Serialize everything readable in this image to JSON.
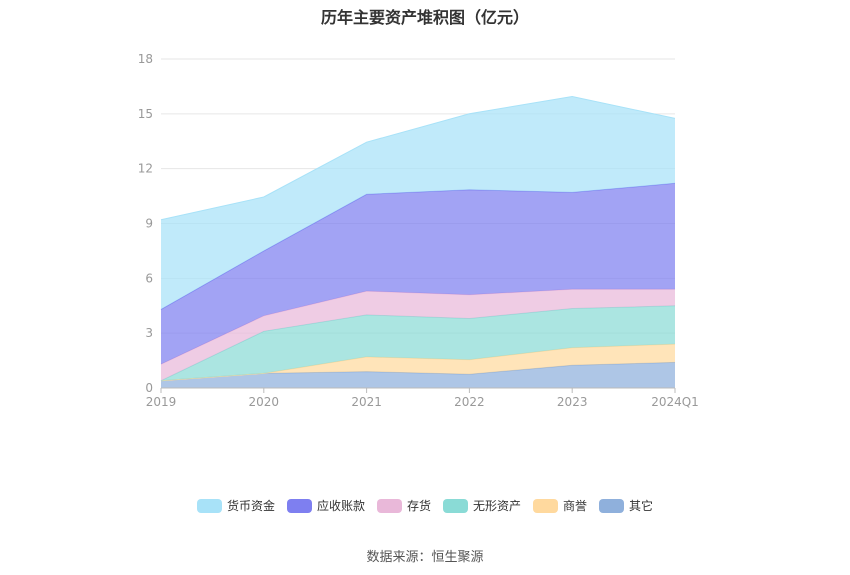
{
  "chart_data": {
    "type": "area",
    "stacked": true,
    "title": "历年主要资产堆积图（亿元）",
    "xlabel": "",
    "ylabel": "",
    "categories": [
      "2019",
      "2020",
      "2021",
      "2022",
      "2023",
      "2024Q1"
    ],
    "ylim": [
      0,
      18
    ],
    "yticks": [
      0,
      3,
      6,
      9,
      12,
      15,
      18
    ],
    "grid": true,
    "legend_position": "bottom",
    "series": [
      {
        "name": "其它",
        "color": "#8fb0dc",
        "values": [
          0.4,
          0.8,
          0.9,
          0.75,
          1.25,
          1.4
        ]
      },
      {
        "name": "商誉",
        "color": "#ffd99e",
        "values": [
          0.0,
          0.0,
          0.8,
          0.8,
          0.95,
          1.0
        ]
      },
      {
        "name": "无形资产",
        "color": "#8adbd6",
        "values": [
          0.0,
          2.3,
          2.3,
          2.25,
          2.15,
          2.1
        ]
      },
      {
        "name": "存货",
        "color": "#e9b8d9",
        "values": [
          0.9,
          0.85,
          1.3,
          1.3,
          1.05,
          0.9
        ]
      },
      {
        "name": "应收账款",
        "color": "#7e7ff0",
        "values": [
          3.0,
          3.55,
          5.3,
          5.75,
          5.3,
          5.8
        ]
      },
      {
        "name": "货币资金",
        "color": "#a8e2f8",
        "values": [
          4.9,
          2.95,
          2.85,
          4.15,
          5.25,
          3.55
        ]
      }
    ]
  },
  "source_text": "数据来源：恒生聚源"
}
